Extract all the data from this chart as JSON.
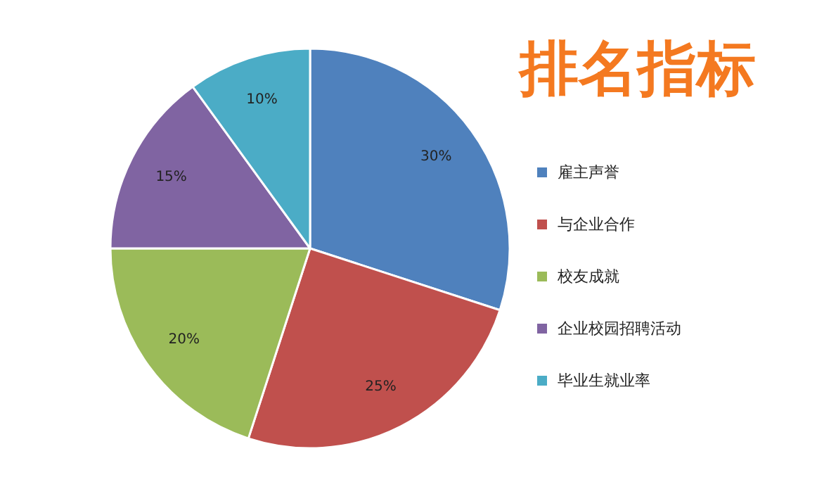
{
  "chart_data": {
    "type": "pie",
    "title": "排名指标",
    "categories": [
      "雇主声誉",
      "与企业合作",
      "校友成就",
      "企业校园招聘活动",
      "毕业生就业率"
    ],
    "values": [
      30,
      25,
      20,
      15,
      10
    ],
    "colors": [
      "#4f81bd",
      "#c0504d",
      "#9bbb59",
      "#8064a2",
      "#4bacc6"
    ],
    "value_labels": [
      "30%",
      "25%",
      "20%",
      "15%",
      "10%"
    ],
    "legend": "right"
  }
}
